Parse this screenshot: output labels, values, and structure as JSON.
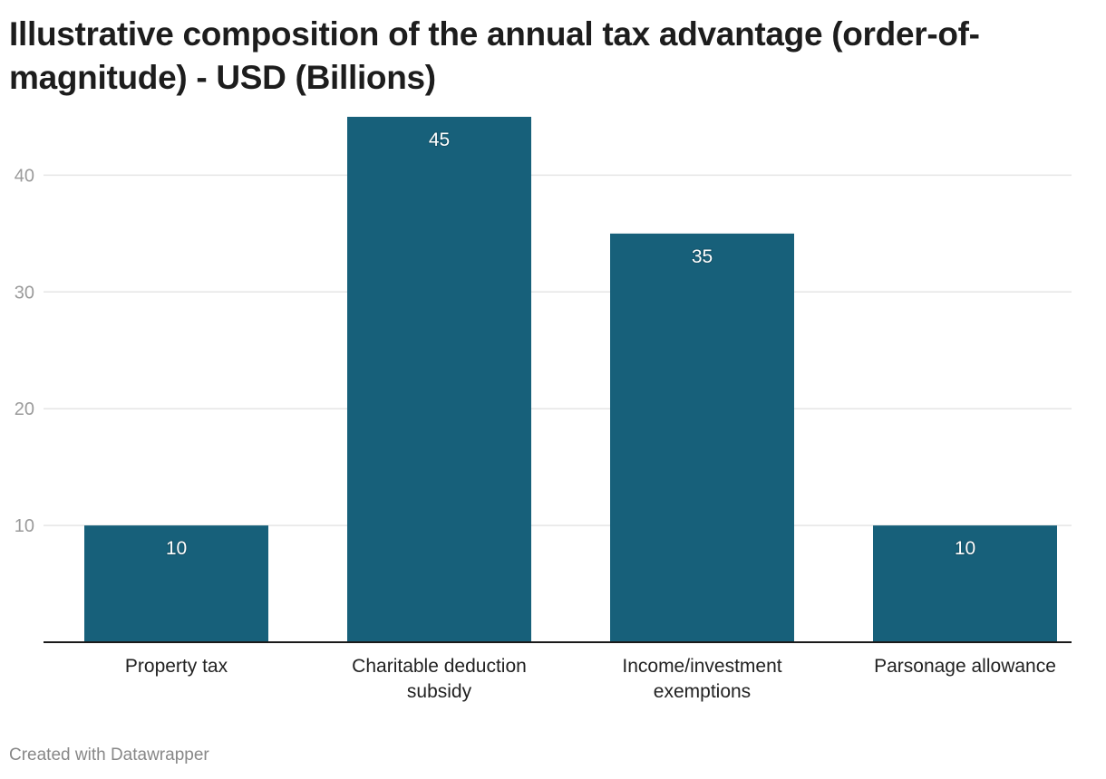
{
  "title": "Illustrative composition of the annual tax advantage (order-of-magnitude) - USD (Billions)",
  "footer": "Created with Datawrapper",
  "colors": {
    "bar": "#17607a",
    "grid": "#e5e5e5",
    "axis": "#1a1a1a"
  },
  "chart_data": {
    "type": "bar",
    "title": "Illustrative composition of the annual tax advantage (order-of-magnitude) - USD (Billions)",
    "categories": [
      [
        "Property tax"
      ],
      [
        "Charitable deduction",
        "subsidy"
      ],
      [
        "Income/investment",
        "exemptions"
      ],
      [
        "Parsonage allowance"
      ]
    ],
    "values": [
      10,
      45,
      35,
      10
    ],
    "yticks": [
      10,
      20,
      30,
      40
    ],
    "ylim": [
      0,
      45
    ],
    "grid": true,
    "xlabel": "",
    "ylabel": ""
  }
}
